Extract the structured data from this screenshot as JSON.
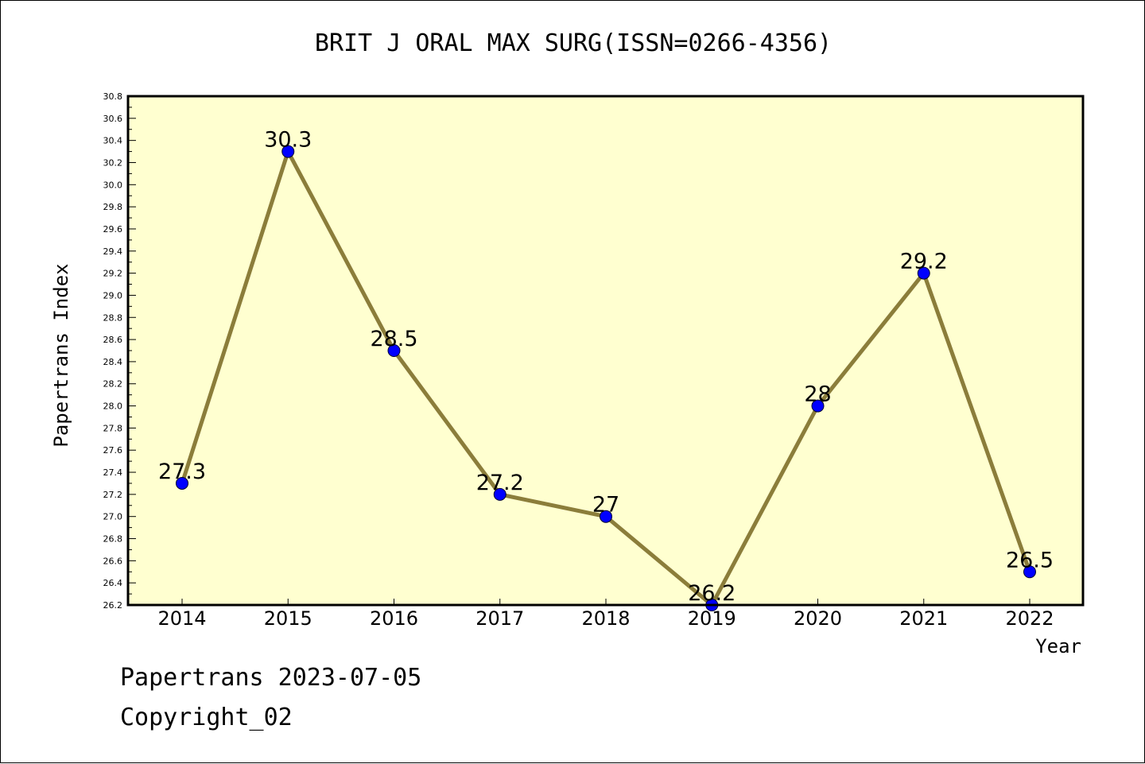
{
  "footer": {
    "date_line": "Papertrans 2023-07-05",
    "copyright": "Copyright_02"
  },
  "colors": {
    "plot_background": "#ffffd0",
    "line": "#8b7d3a",
    "marker": "#0000ff"
  },
  "chart_data": {
    "type": "line",
    "title": "BRIT J ORAL MAX SURG(ISSN=0266-4356)",
    "xlabel": "Year",
    "ylabel": "Papertrans Index",
    "categories": [
      "2014",
      "2015",
      "2016",
      "2017",
      "2018",
      "2019",
      "2020",
      "2021",
      "2022"
    ],
    "series": [
      {
        "values": [
          27.3,
          30.3,
          28.5,
          27.2,
          27.0,
          26.2,
          28.0,
          29.2,
          26.5
        ],
        "labels": [
          "27.3",
          "30.3",
          "28.5",
          "27.2",
          "27",
          "26.2",
          "28",
          "29.2",
          "26.5"
        ]
      }
    ],
    "ylim": [
      26.2,
      30.8
    ],
    "ytick_step": 0.2,
    "grid": false,
    "legend": "none"
  }
}
